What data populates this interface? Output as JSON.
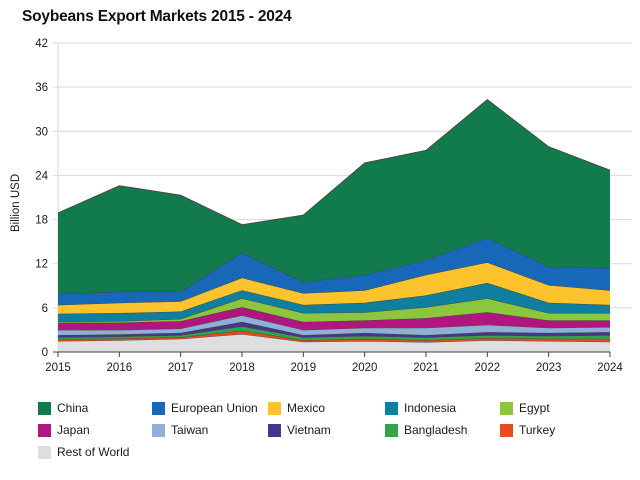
{
  "title": "Soybeans Export Markets 2015 - 2024",
  "chart_data": {
    "type": "area",
    "stacked": true,
    "title": "Soybeans Export Markets 2015 - 2024",
    "xlabel": "",
    "ylabel": "Billion USD",
    "x": [
      2015,
      2016,
      2017,
      2018,
      2019,
      2020,
      2021,
      2022,
      2023,
      2024
    ],
    "ylim": [
      0,
      42
    ],
    "yticks": [
      0,
      6,
      12,
      18,
      24,
      30,
      36,
      42
    ],
    "grid": true,
    "legend_position": "bottom",
    "axis_color": "#3f3f3f",
    "grid_color": "#d9d9d9",
    "band_edge_color": "rgba(70,64,58,0.9)",
    "series": [
      {
        "name": "China",
        "color": "#117B4D",
        "values": [
          11.0,
          14.4,
          13.1,
          3.8,
          9.1,
          15.2,
          14.9,
          18.8,
          16.3,
          13.3
        ]
      },
      {
        "name": "European Union",
        "color": "#1768B8",
        "values": [
          1.5,
          1.5,
          1.3,
          3.4,
          1.5,
          2.1,
          2.0,
          3.3,
          2.5,
          3.0
        ]
      },
      {
        "name": "Mexico",
        "color": "#FCC32D",
        "values": [
          1.2,
          1.4,
          1.4,
          1.7,
          1.6,
          1.7,
          2.8,
          2.8,
          2.4,
          2.0
        ]
      },
      {
        "name": "Indonesia",
        "color": "#0E7F9F",
        "values": [
          1.05,
          1.1,
          1.0,
          1.1,
          1.1,
          1.3,
          1.6,
          2.1,
          1.4,
          1.1
        ]
      },
      {
        "name": "Egypt",
        "color": "#8CC63F",
        "values": [
          0.15,
          0.2,
          0.3,
          1.2,
          1.2,
          1.1,
          1.5,
          1.9,
          1.0,
          1.0
        ]
      },
      {
        "name": "Japan",
        "color": "#B1157F",
        "values": [
          1.0,
          1.0,
          1.0,
          1.1,
          1.1,
          1.0,
          1.3,
          1.7,
          1.0,
          0.9
        ]
      },
      {
        "name": "Taiwan",
        "color": "#8FAFD6",
        "values": [
          0.7,
          0.6,
          0.6,
          0.9,
          0.7,
          0.7,
          1.0,
          1.0,
          0.7,
          0.7
        ]
      },
      {
        "name": "Vietnam",
        "color": "#41388E",
        "values": [
          0.3,
          0.3,
          0.3,
          0.6,
          0.3,
          0.4,
          0.3,
          0.4,
          0.4,
          0.4
        ]
      },
      {
        "name": "Bangladesh",
        "color": "#36A34A",
        "values": [
          0.25,
          0.25,
          0.3,
          0.6,
          0.4,
          0.4,
          0.4,
          0.4,
          0.4,
          0.5
        ]
      },
      {
        "name": "Turkey",
        "color": "#E84B20",
        "values": [
          0.25,
          0.25,
          0.2,
          0.45,
          0.2,
          0.3,
          0.25,
          0.3,
          0.3,
          0.4
        ]
      },
      {
        "name": "Rest of World",
        "color": "#DEDEE1",
        "values": [
          1.5,
          1.6,
          1.8,
          2.45,
          1.4,
          1.5,
          1.35,
          1.6,
          1.5,
          1.4
        ]
      }
    ]
  }
}
